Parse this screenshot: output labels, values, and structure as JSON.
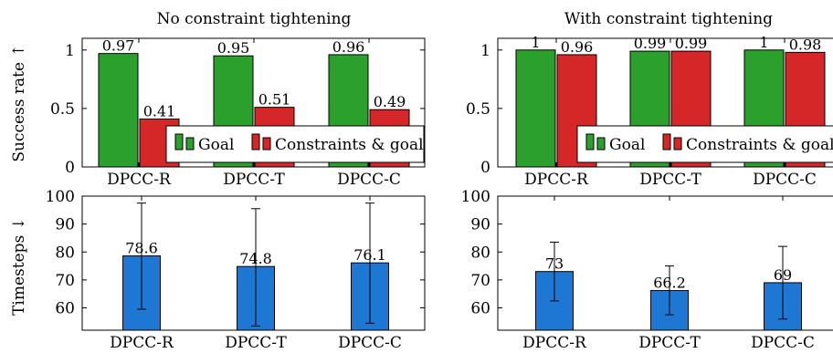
{
  "figure": {
    "row_labels": [
      "Success rate ↑",
      "Timesteps ↓"
    ],
    "column_titles": [
      "No constraint tightening",
      "With constraint tightening"
    ]
  },
  "colors": {
    "goal": "#2ca02c",
    "constraints_goal": "#d62728",
    "timesteps": "#1f77d4"
  },
  "chart_data": [
    {
      "type": "bar",
      "title": "No constraint tightening",
      "ylabel": "Success rate ↑",
      "categories": [
        "DPCC-R",
        "DPCC-T",
        "DPCC-C"
      ],
      "series": [
        {
          "name": "Goal",
          "values": [
            0.97,
            0.95,
            0.96
          ],
          "labels": [
            "0.97",
            "0.95",
            "0.96"
          ]
        },
        {
          "name": "Constraints & goal",
          "values": [
            0.41,
            0.51,
            0.49
          ],
          "labels": [
            "0.41",
            "0.51",
            "0.49"
          ]
        }
      ],
      "yticks": [
        0,
        0.5,
        1
      ],
      "ylim": [
        0,
        1.1
      ],
      "legend": "bottom-right",
      "grid": false
    },
    {
      "type": "bar",
      "title": "With constraint tightening",
      "ylabel": "",
      "categories": [
        "DPCC-R",
        "DPCC-T",
        "DPCC-C"
      ],
      "series": [
        {
          "name": "Goal",
          "values": [
            1,
            0.99,
            1
          ],
          "labels": [
            "1",
            "0.99",
            "1"
          ]
        },
        {
          "name": "Constraints & goal",
          "values": [
            0.96,
            0.99,
            0.98
          ],
          "labels": [
            "0.96",
            "0.99",
            "0.98"
          ]
        }
      ],
      "yticks": [
        0,
        0.5,
        1
      ],
      "ylim": [
        0,
        1.1
      ],
      "legend": "bottom-right",
      "grid": false
    },
    {
      "type": "bar",
      "title": "",
      "ylabel": "Timesteps ↓",
      "categories": [
        "DPCC-R",
        "DPCC-T",
        "DPCC-C"
      ],
      "series": [
        {
          "name": "",
          "values": [
            78.6,
            74.8,
            76.1
          ],
          "labels": [
            "78.6",
            "74.8",
            "76.1"
          ],
          "error_low": [
            59.5,
            53.5,
            54.5
          ],
          "error_high": [
            97.5,
            95.5,
            97.5
          ]
        }
      ],
      "yticks": [
        60,
        70,
        80,
        90,
        100
      ],
      "ylim": [
        52,
        100
      ],
      "grid": false
    },
    {
      "type": "bar",
      "title": "",
      "ylabel": "",
      "categories": [
        "DPCC-R",
        "DPCC-T",
        "DPCC-C"
      ],
      "series": [
        {
          "name": "",
          "values": [
            73,
            66.2,
            69
          ],
          "labels": [
            "73",
            "66.2",
            "69"
          ],
          "error_low": [
            62.5,
            57.5,
            56
          ],
          "error_high": [
            83.5,
            75,
            82
          ]
        }
      ],
      "yticks": [
        60,
        70,
        80,
        90,
        100
      ],
      "ylim": [
        52,
        100
      ],
      "grid": false
    }
  ]
}
